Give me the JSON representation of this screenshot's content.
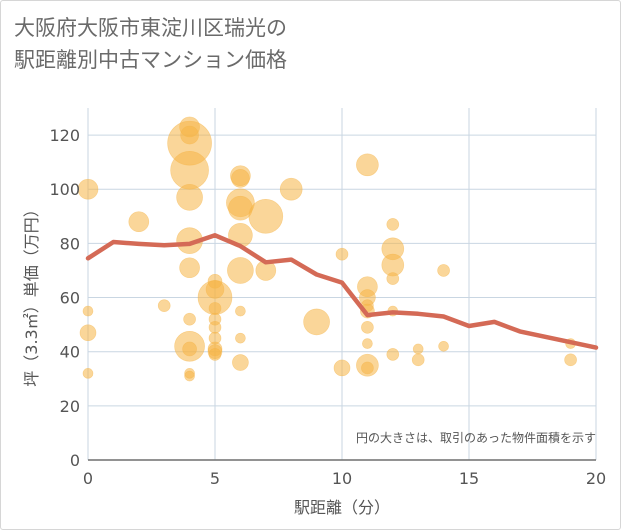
{
  "title_line1": "大阪府大阪市東淀川区瑞光の",
  "title_line2": "駅距離別中古マンション価格",
  "chart_data": {
    "type": "scatter",
    "title": "大阪府大阪市東淀川区瑞光の駅距離別中古マンション価格",
    "xlabel": "駅距離（分）",
    "ylabel": "坪（3.3㎡）単価（万円）",
    "xlim": [
      0,
      20
    ],
    "ylim": [
      0,
      130
    ],
    "x_ticks": [
      "0",
      "5",
      "10",
      "15",
      "20"
    ],
    "y_ticks": [
      "0",
      "20",
      "40",
      "60",
      "80",
      "100",
      "120"
    ],
    "grid": true,
    "legend": "none",
    "note": "円の大きさは、取引のあった物件面積を示す",
    "colors": {
      "bubble": "#f5b445",
      "line": "#d46a56",
      "grid": "#c9d6e2"
    },
    "bubbles": [
      {
        "x": 0,
        "y": 100,
        "r": 10
      },
      {
        "x": 0,
        "y": 55,
        "r": 5
      },
      {
        "x": 0,
        "y": 47,
        "r": 8
      },
      {
        "x": 0,
        "y": 32,
        "r": 5
      },
      {
        "x": 2,
        "y": 88,
        "r": 10
      },
      {
        "x": 3,
        "y": 57,
        "r": 6
      },
      {
        "x": 4,
        "y": 123,
        "r": 10
      },
      {
        "x": 4,
        "y": 120,
        "r": 9
      },
      {
        "x": 4,
        "y": 117,
        "r": 22
      },
      {
        "x": 4,
        "y": 107,
        "r": 19
      },
      {
        "x": 4,
        "y": 97,
        "r": 13
      },
      {
        "x": 4,
        "y": 81,
        "r": 13
      },
      {
        "x": 4,
        "y": 71,
        "r": 10
      },
      {
        "x": 4,
        "y": 52,
        "r": 6
      },
      {
        "x": 4,
        "y": 42,
        "r": 15
      },
      {
        "x": 4,
        "y": 41,
        "r": 7
      },
      {
        "x": 4,
        "y": 32,
        "r": 5
      },
      {
        "x": 4,
        "y": 31,
        "r": 5
      },
      {
        "x": 5,
        "y": 66,
        "r": 7
      },
      {
        "x": 5,
        "y": 63,
        "r": 9
      },
      {
        "x": 5,
        "y": 60,
        "r": 17
      },
      {
        "x": 5,
        "y": 56,
        "r": 6
      },
      {
        "x": 5,
        "y": 52,
        "r": 6
      },
      {
        "x": 5,
        "y": 49,
        "r": 6
      },
      {
        "x": 5,
        "y": 45,
        "r": 6
      },
      {
        "x": 5,
        "y": 41,
        "r": 7
      },
      {
        "x": 5,
        "y": 40,
        "r": 7
      },
      {
        "x": 5,
        "y": 39,
        "r": 6
      },
      {
        "x": 6,
        "y": 105,
        "r": 10
      },
      {
        "x": 6,
        "y": 104,
        "r": 9
      },
      {
        "x": 6,
        "y": 95,
        "r": 14
      },
      {
        "x": 6,
        "y": 93,
        "r": 12
      },
      {
        "x": 6,
        "y": 83,
        "r": 12
      },
      {
        "x": 6,
        "y": 70,
        "r": 13
      },
      {
        "x": 6,
        "y": 55,
        "r": 5
      },
      {
        "x": 6,
        "y": 45,
        "r": 5
      },
      {
        "x": 6,
        "y": 36,
        "r": 8
      },
      {
        "x": 7,
        "y": 90,
        "r": 17
      },
      {
        "x": 7,
        "y": 70,
        "r": 10
      },
      {
        "x": 8,
        "y": 100,
        "r": 11
      },
      {
        "x": 9,
        "y": 51,
        "r": 13
      },
      {
        "x": 10,
        "y": 76,
        "r": 6
      },
      {
        "x": 10,
        "y": 34,
        "r": 8
      },
      {
        "x": 11,
        "y": 109,
        "r": 11
      },
      {
        "x": 11,
        "y": 64,
        "r": 10
      },
      {
        "x": 11,
        "y": 60,
        "r": 8
      },
      {
        "x": 11,
        "y": 57,
        "r": 6
      },
      {
        "x": 11,
        "y": 55,
        "r": 7
      },
      {
        "x": 11,
        "y": 49,
        "r": 6
      },
      {
        "x": 11,
        "y": 43,
        "r": 5
      },
      {
        "x": 11,
        "y": 35,
        "r": 11
      },
      {
        "x": 11,
        "y": 34,
        "r": 6
      },
      {
        "x": 12,
        "y": 87,
        "r": 6
      },
      {
        "x": 12,
        "y": 78,
        "r": 11
      },
      {
        "x": 12,
        "y": 72,
        "r": 11
      },
      {
        "x": 12,
        "y": 67,
        "r": 6
      },
      {
        "x": 12,
        "y": 55,
        "r": 5
      },
      {
        "x": 12,
        "y": 39,
        "r": 6
      },
      {
        "x": 13,
        "y": 41,
        "r": 5
      },
      {
        "x": 13,
        "y": 37,
        "r": 6
      },
      {
        "x": 14,
        "y": 70,
        "r": 6
      },
      {
        "x": 14,
        "y": 42,
        "r": 5
      },
      {
        "x": 19,
        "y": 43,
        "r": 5
      },
      {
        "x": 19,
        "y": 37,
        "r": 6
      }
    ],
    "trend_line": {
      "x": [
        0,
        1,
        2,
        3,
        4,
        5,
        6,
        7,
        8,
        9,
        10,
        11,
        12,
        13,
        14,
        15,
        16,
        17,
        18,
        19,
        20
      ],
      "y": [
        74.5,
        80.5,
        79.8,
        79.3,
        79.8,
        83,
        79,
        73,
        74,
        68.5,
        65.5,
        53.5,
        54.5,
        54,
        53,
        49.5,
        51,
        47.5,
        45.5,
        43.5,
        41.5
      ]
    }
  }
}
